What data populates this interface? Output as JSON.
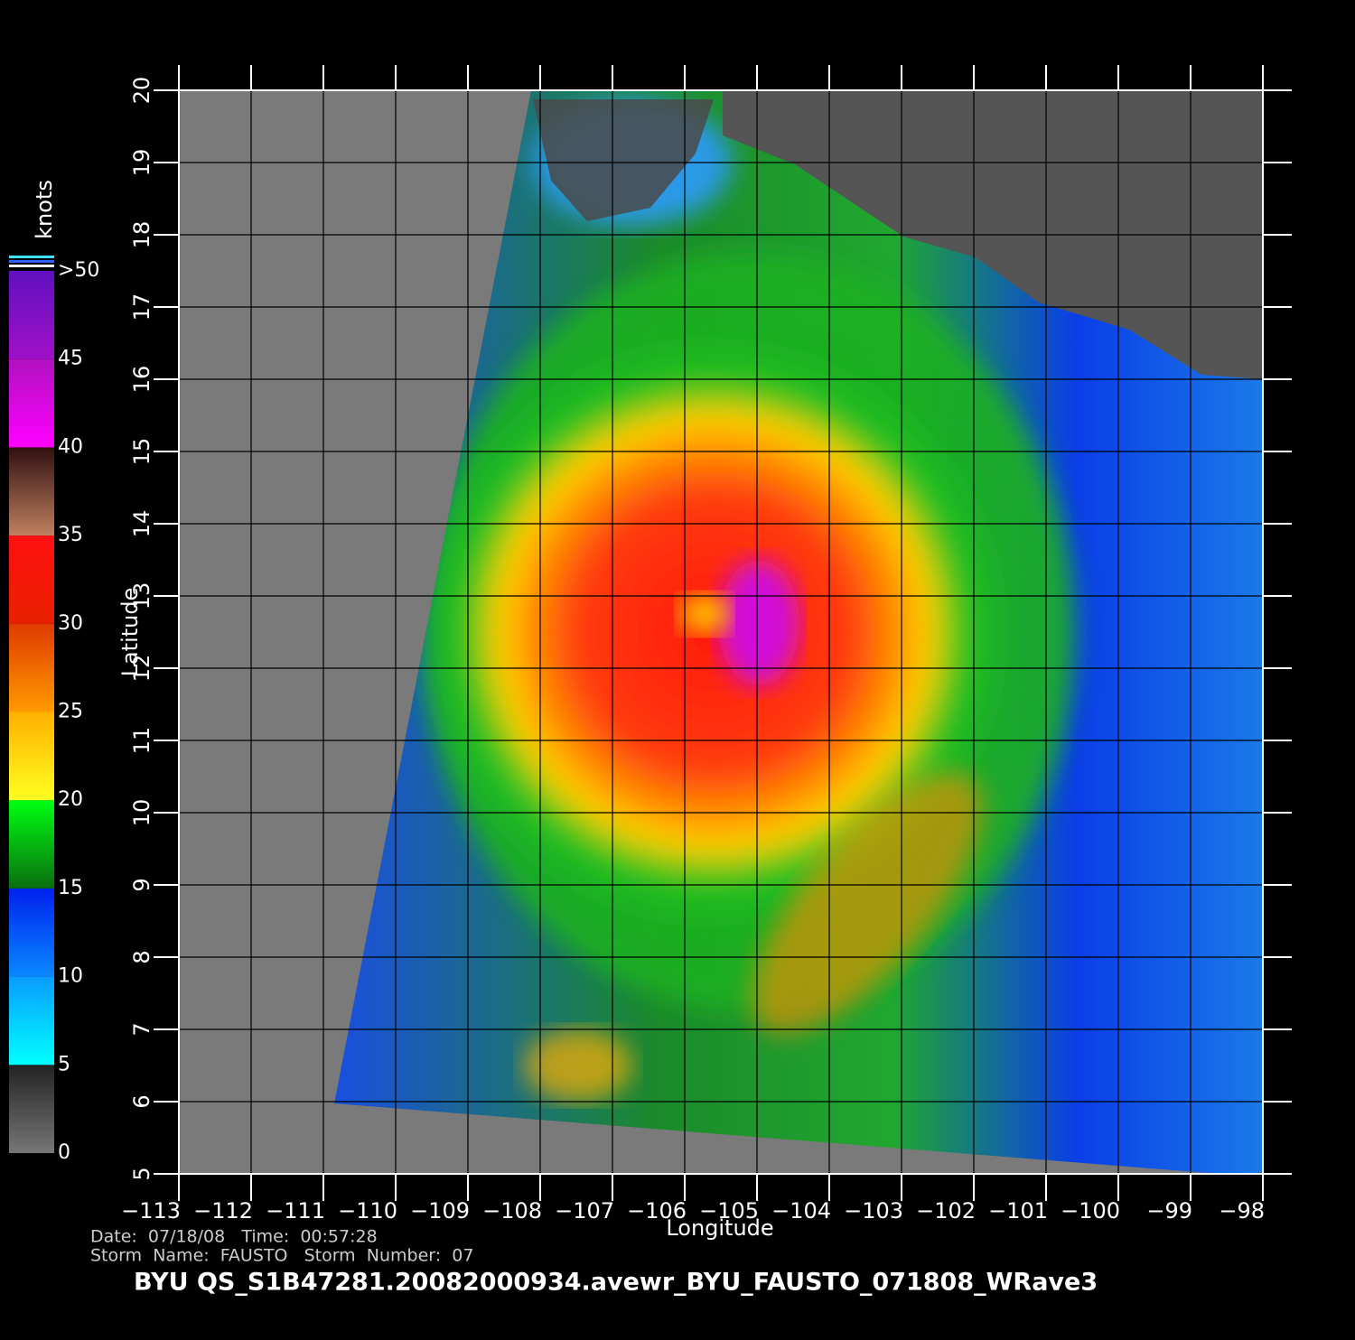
{
  "map": {
    "xlabel": "Longitude",
    "ylabel": "Latitude",
    "xticks": [
      {
        "value": -113,
        "label": "−113"
      },
      {
        "value": -112,
        "label": "−112"
      },
      {
        "value": -111,
        "label": "−111"
      },
      {
        "value": -110,
        "label": "−110"
      },
      {
        "value": -109,
        "label": "−109"
      },
      {
        "value": -108,
        "label": "−108"
      },
      {
        "value": -107,
        "label": "−107"
      },
      {
        "value": -106,
        "label": "−106"
      },
      {
        "value": -105,
        "label": "−105"
      },
      {
        "value": -104,
        "label": "−104"
      },
      {
        "value": -103,
        "label": "−103"
      },
      {
        "value": -102,
        "label": "−102"
      },
      {
        "value": -101,
        "label": "−101"
      },
      {
        "value": -100,
        "label": "−100"
      },
      {
        "value": -99,
        "label": "−99"
      },
      {
        "value": -98,
        "label": "−98"
      }
    ],
    "xlim": [
      -113,
      -98
    ],
    "yticks": [
      5,
      6,
      7,
      8,
      9,
      10,
      11,
      12,
      13,
      14,
      15,
      16,
      17,
      18,
      19,
      20
    ],
    "ylim": [
      5,
      20
    ],
    "colorbar": {
      "title": "knots",
      "lim": [
        0,
        50
      ],
      "ticks": [
        0,
        5,
        10,
        15,
        20,
        25,
        30,
        35,
        40,
        45,
        {
          "value": 50,
          "label": ">50"
        }
      ]
    }
  },
  "footer": {
    "line1": "Date:  07/18/08   Time:  00:57:28",
    "line2": "Storm  Name:  FAUSTO   Storm  Number:  07",
    "title": "BYU  QS_S1B47281.20082000934.avewr_BYU_FAUSTO_071808_WRave3"
  }
}
